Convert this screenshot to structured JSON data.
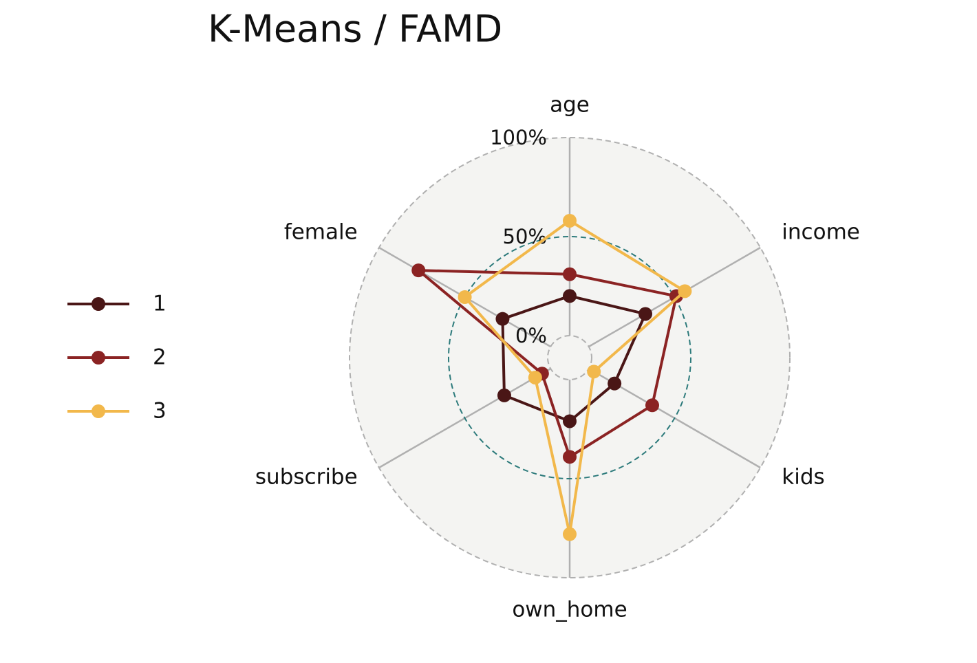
{
  "chart_data": {
    "type": "radar",
    "title": "K-Means / FAMD",
    "categories": [
      "age",
      "income",
      "kids",
      "own_home",
      "subscribe",
      "female"
    ],
    "series": [
      {
        "name": "1",
        "color": "#4a1616",
        "values": [
          20,
          33,
          15,
          21,
          27,
          28
        ]
      },
      {
        "name": "2",
        "color": "#8b2323",
        "values": [
          31,
          51,
          37,
          39,
          5,
          77
        ]
      },
      {
        "name": "3",
        "color": "#f2b84b",
        "values": [
          58,
          56,
          3,
          78,
          9,
          50
        ]
      }
    ],
    "ylim": [
      0,
      100
    ],
    "yticks": [
      {
        "value": 0,
        "label": "0%"
      },
      {
        "value": 50,
        "label": "50%"
      },
      {
        "value": 100,
        "label": "100%"
      }
    ]
  }
}
